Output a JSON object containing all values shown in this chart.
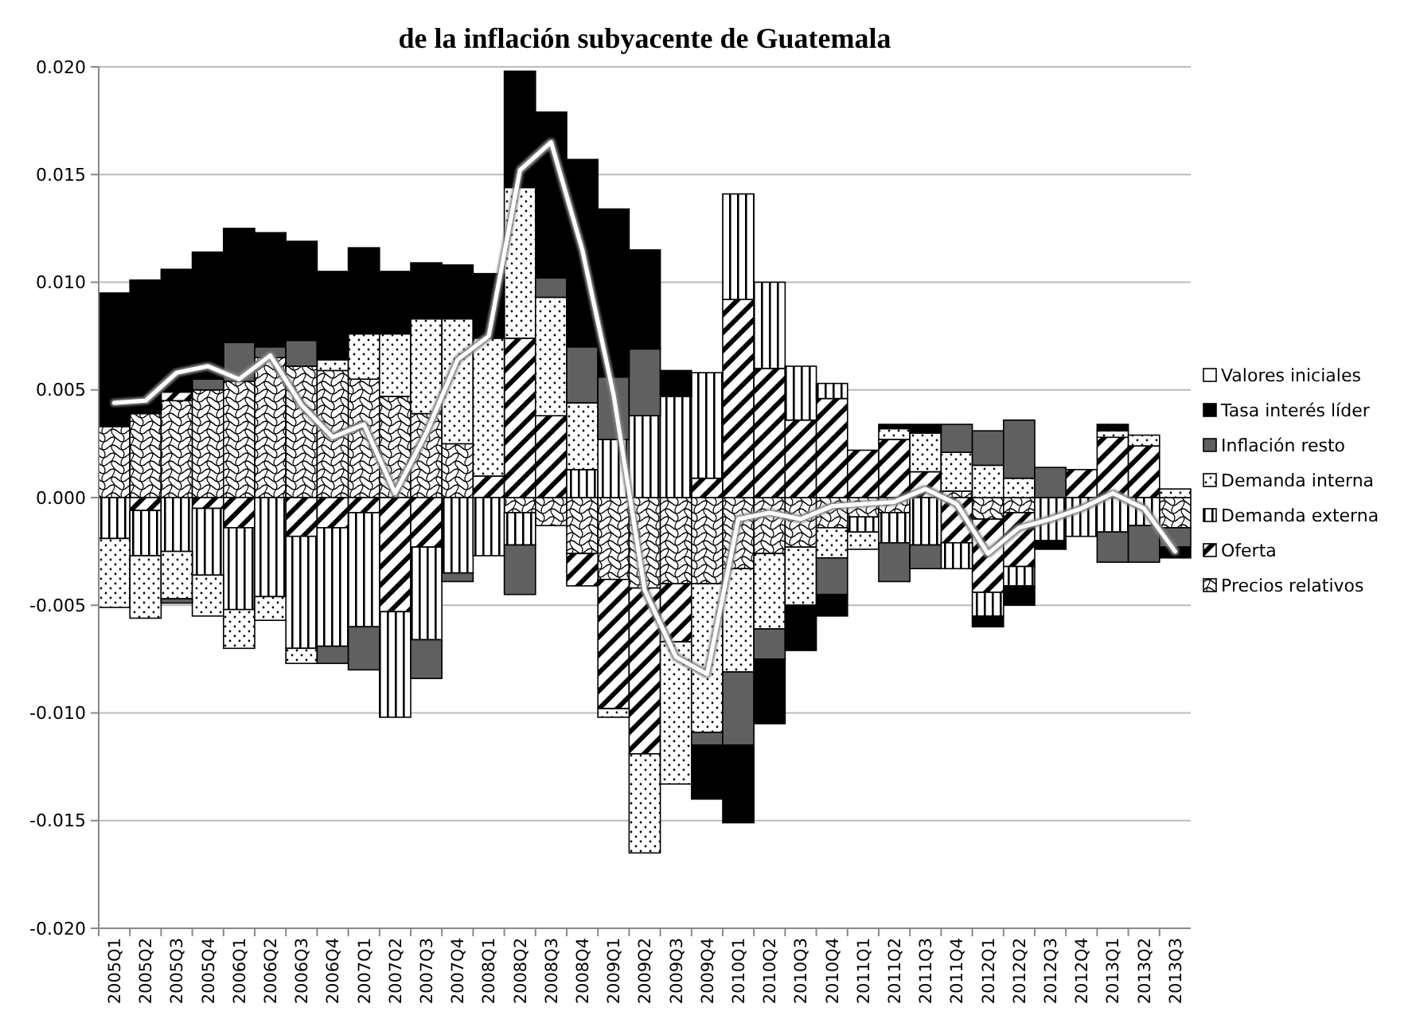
{
  "chart_data": {
    "type": "bar",
    "stacked": true,
    "title": "de la inflación subyacente de Guatemala",
    "categories": [
      "2005Q1",
      "2005Q2",
      "2005Q3",
      "2005Q4",
      "2006Q1",
      "2006Q2",
      "2006Q3",
      "2006Q4",
      "2007Q1",
      "2007Q2",
      "2007Q3",
      "2007Q4",
      "2008Q1",
      "2008Q2",
      "2008Q3",
      "2008Q4",
      "2009Q1",
      "2009Q2",
      "2009Q3",
      "2009Q4",
      "2010Q1",
      "2010Q2",
      "2010Q3",
      "2010Q4",
      "2011Q1",
      "2011Q2",
      "2011Q3",
      "2011Q4",
      "2012Q1",
      "2012Q2",
      "2012Q3",
      "2012Q4",
      "2013Q1",
      "2013Q2",
      "2013Q3"
    ],
    "ylim": [
      -0.02,
      0.02
    ],
    "yticks": [
      {
        "value": -0.02,
        "label": "-0.020"
      },
      {
        "value": -0.015,
        "label": "-0.015"
      },
      {
        "value": -0.01,
        "label": "-0.010"
      },
      {
        "value": -0.005,
        "label": "-0.005"
      },
      {
        "value": 0,
        "label": "0.000"
      },
      {
        "value": 0.005,
        "label": "0.005"
      },
      {
        "value": 0.01,
        "label": "0.010"
      },
      {
        "value": 0.015,
        "label": "0.015"
      },
      {
        "value": 0.02,
        "label": "0.020"
      }
    ],
    "grid": "y",
    "legend": "right",
    "series": [
      {
        "name": "Precios relativos",
        "color": "#000000",
        "values": [
          0.0033,
          0.0039,
          0.0045,
          0.005,
          0.0054,
          0.0065,
          0.0061,
          0.0059,
          0.0055,
          0.0047,
          0.0039,
          0.0025,
          0,
          -0.0007,
          -0.0013,
          -0.0026,
          -0.0038,
          -0.0042,
          -0.004,
          -0.004,
          -0.0033,
          -0.0026,
          -0.0023,
          -0.0014,
          -0.0009,
          -0.0007,
          null,
          0.0003,
          -0.001,
          -0.0007,
          0,
          0,
          0,
          0,
          -0.0014
        ]
      },
      {
        "name": "Oferta",
        "color": "#000000",
        "values": [
          0,
          -0.0006,
          0.0004,
          -0.0005,
          -0.0014,
          0,
          -0.0018,
          -0.0014,
          -0.0007,
          -0.0053,
          -0.0023,
          0,
          0.001,
          0.0074,
          0.0038,
          -0.0015,
          -0.006,
          -0.0077,
          -0.0027,
          0.0009,
          0.0092,
          0.006,
          0.0036,
          0.0046,
          0.0022,
          0.0027,
          0.0012,
          -0.0021,
          -0.0034,
          -0.0025,
          0,
          0.0013,
          0.0028,
          0.0024,
          0
        ]
      },
      {
        "name": "Demanda externa",
        "color": "#000000",
        "values": [
          -0.0019,
          -0.0021,
          -0.0025,
          -0.0031,
          -0.0038,
          -0.0046,
          -0.0052,
          -0.0055,
          -0.0053,
          -0.0049,
          -0.0043,
          -0.0035,
          -0.0027,
          -0.0015,
          0,
          0.0013,
          0.0027,
          0.0038,
          0.0047,
          0.0049,
          0.0049,
          0.004,
          0.0025,
          0.0007,
          -0.0007,
          -0.0014,
          -0.0022,
          -0.0012,
          -0.0011,
          -0.0009,
          -0.002,
          -0.0018,
          -0.0016,
          -0.0013,
          0
        ]
      },
      {
        "name": "Demanda interna",
        "color": "#000000",
        "values": [
          -0.0032,
          -0.0029,
          -0.0022,
          -0.0019,
          -0.0018,
          -0.0011,
          -0.0007,
          0.0005,
          0.0021,
          0.0029,
          0.0044,
          0.0058,
          0.0064,
          0.007,
          0.0055,
          0.0031,
          -0.0004,
          -0.0046,
          -0.0066,
          -0.0069,
          -0.0048,
          -0.0035,
          -0.0027,
          -0.0014,
          -0.0008,
          0.0005,
          0.0018,
          0.0018,
          0.0015,
          0.0009,
          0,
          0,
          0.0003,
          0.0005,
          0.0004
        ]
      },
      {
        "name": "Inflación resto",
        "color": "#606060",
        "values": [
          0,
          0,
          -0.0002,
          0.0005,
          0.0018,
          0.0005,
          0.0012,
          -0.0008,
          -0.002,
          0,
          -0.0018,
          -0.0004,
          0,
          -0.0023,
          0.0009,
          0.0026,
          0.0029,
          0.0031,
          0,
          -0.0006,
          -0.0034,
          -0.0014,
          0,
          -0.0017,
          0,
          -0.0018,
          -0.0011,
          0.0013,
          0.0016,
          0.0027,
          0.0014,
          0,
          -0.0014,
          -0.0017,
          -0.0009
        ]
      },
      {
        "name": "Tasa interés líder",
        "color": "#000000",
        "values": [
          0.0062,
          0.0062,
          0.0057,
          0.0059,
          0.0053,
          0.0053,
          0.0046,
          0.0041,
          0.004,
          0.0029,
          0.0026,
          0.0025,
          0.003,
          0.0054,
          0.0077,
          0.0087,
          0.0078,
          0.0046,
          0.0012,
          -0.0025,
          -0.0036,
          -0.003,
          -0.0021,
          -0.001,
          0,
          0.0002,
          0.0004,
          0,
          -0.0005,
          -0.0009,
          -0.0004,
          0,
          0.0003,
          0,
          -0.0005
        ]
      },
      {
        "name": "Valores iniciales",
        "color": "#ffffff",
        "values": [
          0,
          0,
          0,
          0,
          0,
          0,
          0,
          0,
          0,
          0,
          0,
          0,
          0,
          0,
          0,
          0,
          0,
          0,
          0,
          0,
          0,
          0,
          0,
          0,
          0,
          0,
          0,
          0,
          0,
          0,
          0,
          0,
          0,
          0,
          0
        ]
      },
      {
        "type": "line",
        "color": "#ffffff",
        "values": [
          0.0044,
          0.0045,
          0.0058,
          0.0061,
          0.0055,
          0.0066,
          0.0043,
          0.0028,
          0.0034,
          0.0002,
          0.003,
          0.0064,
          0.0075,
          0.0152,
          0.0165,
          0.0115,
          0.0048,
          -0.0043,
          -0.0074,
          -0.0082,
          -0.001,
          -0.0007,
          -0.001,
          -0.0004,
          -0.0003,
          -0.0002,
          0.0004,
          -0.0003,
          -0.0026,
          -0.0014,
          -0.001,
          -0.0005,
          0.0002,
          -0.0005,
          -0.0025
        ]
      }
    ]
  }
}
